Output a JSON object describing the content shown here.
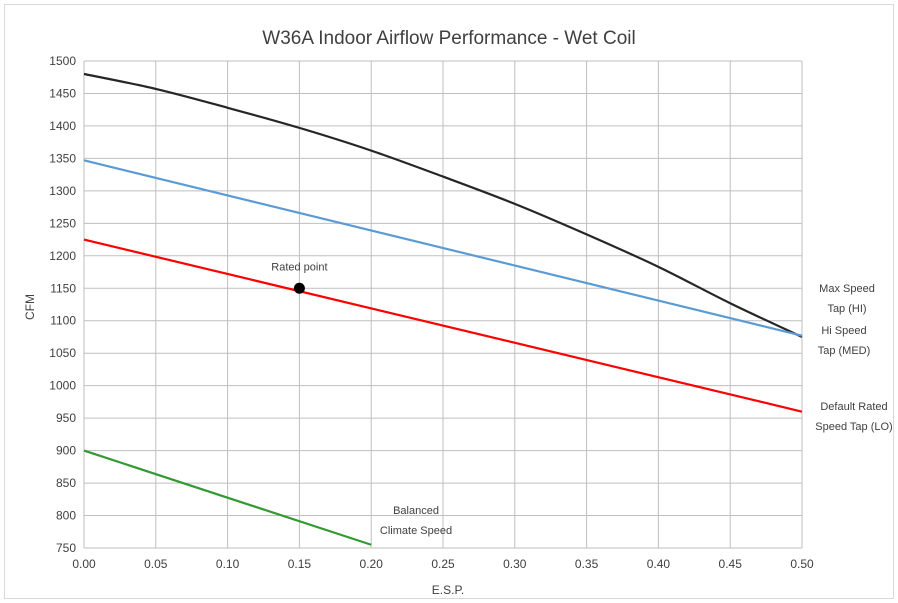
{
  "chart_data": {
    "type": "line",
    "title": "W36A   Indoor Airflow Performance - Wet Coil",
    "xlabel": "E.S.P.",
    "ylabel": "CFM",
    "xlim": [
      0,
      0.5
    ],
    "ylim": [
      750,
      1500
    ],
    "x_ticks": [
      "0.00",
      "0.05",
      "0.10",
      "0.15",
      "0.20",
      "0.25",
      "0.30",
      "0.35",
      "0.40",
      "0.45",
      "0.50"
    ],
    "y_ticks": [
      "750",
      "800",
      "850",
      "900",
      "950",
      "1000",
      "1050",
      "1100",
      "1150",
      "1200",
      "1250",
      "1300",
      "1350",
      "1400",
      "1450",
      "1500"
    ],
    "grid": true,
    "legend": "none",
    "series": [
      {
        "label": [
          "Max Speed",
          "Tap (HI)"
        ],
        "color": "#262626",
        "x": [
          0.0,
          0.05,
          0.1,
          0.15,
          0.2,
          0.25,
          0.3,
          0.35,
          0.4,
          0.45,
          0.5
        ],
        "y": [
          1480,
          1457,
          1428,
          1397,
          1362,
          1322,
          1280,
          1233,
          1183,
          1127,
          1075
        ]
      },
      {
        "label": [
          "Hi Speed",
          "Tap (MED)"
        ],
        "color": "#5b9bd5",
        "x": [
          0.0,
          0.5
        ],
        "y": [
          1347,
          1077
        ]
      },
      {
        "label": [
          "Default Rated",
          "Speed Tap (LO)"
        ],
        "color": "#ff0000",
        "x": [
          0.0,
          0.5
        ],
        "y": [
          1225,
          960
        ]
      },
      {
        "label": [
          "Balanced",
          "Climate Speed"
        ],
        "color": "#339933",
        "x": [
          0.0,
          0.2
        ],
        "y": [
          900,
          755
        ]
      }
    ],
    "point": {
      "label": "Rated point",
      "x": 0.15,
      "y": 1150
    }
  }
}
